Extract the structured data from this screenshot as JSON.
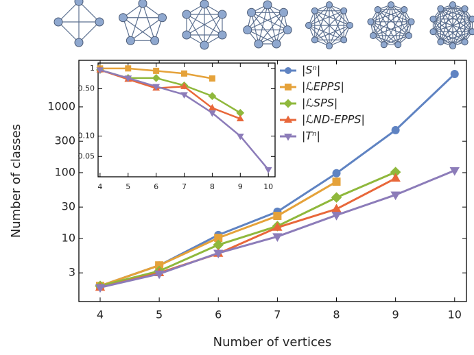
{
  "chart_data": [
    {
      "type": "line",
      "x_label": "Number of vertices",
      "y_label": "Number of classes",
      "x": [
        4,
        5,
        6,
        7,
        8,
        9,
        10
      ],
      "xlim": [
        3.64,
        10.2
      ],
      "xticks": [
        4,
        5,
        6,
        7,
        8,
        9,
        10
      ],
      "ylim": [
        1.1,
        5100
      ],
      "yticks": [
        3,
        10,
        30,
        100,
        300,
        1000
      ],
      "y_log": true,
      "legend": "upper-right",
      "series": [
        {
          "name": "|Sⁿ|",
          "color": "#5f83c2",
          "marker": "circle",
          "values": [
            1.9,
            3.9,
            11.3,
            25.5,
            98,
            443,
            3160
          ]
        },
        {
          "name": "|ℒEPPS|",
          "color": "#e5a23a",
          "marker": "square",
          "values": [
            1.9,
            3.9,
            10.2,
            22,
            73,
            null,
            null
          ]
        },
        {
          "name": "|ℒSPS|",
          "color": "#8fb83c",
          "marker": "diamond",
          "values": [
            1.9,
            3.2,
            8,
            15.4,
            42,
            102,
            null
          ]
        },
        {
          "name": "|ℒND-EPPS|",
          "color": "#e8673a",
          "marker": "triangle-up",
          "values": [
            1.8,
            3.0,
            5.9,
            14.7,
            28,
            82,
            null
          ]
        },
        {
          "name": "|Tⁿ|",
          "color": "#8c7cb9",
          "marker": "triangle-down",
          "values": [
            1.8,
            2.9,
            6,
            10.7,
            22.6,
            46,
            108
          ]
        }
      ]
    },
    {
      "type": "line",
      "x": [
        4,
        5,
        6,
        7,
        8,
        9,
        10
      ],
      "xlim": [
        3.93,
        10.24
      ],
      "xticks": [
        4,
        5,
        6,
        7,
        8,
        9,
        10
      ],
      "ylim": [
        0.025,
        1.2
      ],
      "yticks": [
        1,
        {
          "value": 0.5,
          "label": "0.50"
        },
        {
          "value": 0.1,
          "label": "0.10"
        },
        0.05
      ],
      "y_log": true,
      "series": [
        {
          "color": "#e5a23a",
          "marker": "square",
          "values": [
            1,
            1,
            0.92,
            0.84,
            0.71,
            null,
            null
          ]
        },
        {
          "color": "#8fb83c",
          "marker": "diamond",
          "values": [
            0.95,
            0.72,
            0.72,
            0.56,
            0.39,
            0.22,
            null
          ]
        },
        {
          "color": "#e8673a",
          "marker": "triangle-up",
          "values": [
            0.95,
            0.69,
            0.51,
            0.54,
            0.26,
            0.18,
            null
          ]
        },
        {
          "color": "#8c7cb9",
          "marker": "triangle-down",
          "values": [
            0.95,
            0.72,
            0.54,
            0.41,
            0.22,
            0.1,
            0.032
          ]
        }
      ]
    }
  ]
}
